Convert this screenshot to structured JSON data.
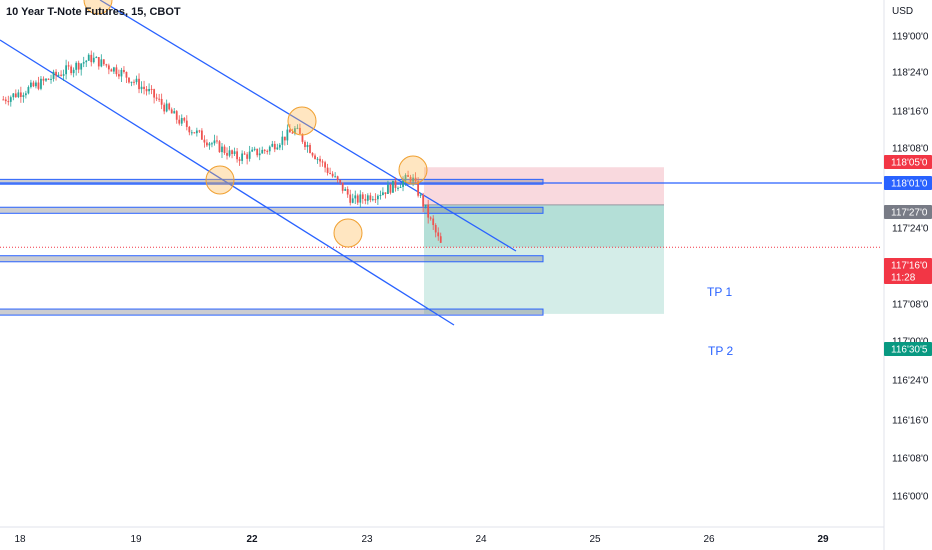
{
  "header": {
    "title": "10 Year T-Note Futures, 15, CBOT",
    "currency": "USD"
  },
  "chart_data": {
    "type": "line",
    "title": "10 Year T-Note Futures, 15, CBOT",
    "xlabel": "",
    "ylabel": "USD",
    "y_ticks": [
      "119'00'0",
      "118'24'0",
      "118'16'0",
      "118'08'0",
      "117'24'0",
      "117'08'0",
      "117'00'0",
      "116'24'0",
      "116'16'0",
      "116'08'0",
      "116'00'0"
    ],
    "y_tick_values": [
      119.0,
      118.75,
      118.5,
      118.25,
      117.75,
      117.25,
      117.0,
      116.75,
      116.5,
      116.25,
      116.0
    ],
    "x_ticks": [
      "18",
      "19",
      "22",
      "23",
      "24",
      "25",
      "26",
      "29"
    ],
    "ylim": [
      115.75,
      119.16
    ],
    "grid": false,
    "close_series": {
      "name": "Close",
      "x": [
        "18 00:00",
        "18 06:00",
        "18 12:00",
        "18 18:00",
        "19 00:00",
        "19 06:00",
        "19 12:00",
        "19 18:00",
        "22 00:00",
        "22 06:00",
        "22 12:00",
        "22 18:00",
        "23 00:00",
        "23 06:00",
        "23 12:00",
        "23 18:00"
      ],
      "values": [
        118.72,
        118.82,
        118.94,
        119.06,
        118.95,
        118.78,
        118.55,
        118.38,
        118.24,
        118.3,
        118.47,
        118.17,
        117.88,
        117.96,
        118.08,
        117.52
      ]
    },
    "price_tags": [
      {
        "label": "118'05'0",
        "value": 118.16,
        "color": "#f23645"
      },
      {
        "label": "118'01'0",
        "value": 118.03,
        "color": "#2962ff"
      },
      {
        "label": "117'27'0",
        "value": 117.85,
        "color": "#787b86"
      },
      {
        "label": "117'16'0",
        "value": 117.5,
        "color": "#f23645"
      },
      {
        "label": "11:28",
        "value": 117.46,
        "color": "#f23645"
      },
      {
        "label": "116'30'5",
        "value": 116.95,
        "color": "#089981"
      }
    ],
    "horizontal_line": {
      "value": 118.03,
      "color": "#2962ff"
    },
    "last_price_line": {
      "value": 117.5,
      "color": "#f23645"
    },
    "zones": [
      {
        "top": 118.06,
        "bottom": 118.02
      },
      {
        "top": 117.83,
        "bottom": 117.78
      },
      {
        "top": 117.43,
        "bottom": 117.38
      },
      {
        "top": 116.99,
        "bottom": 116.94
      }
    ],
    "channel": {
      "upper": [
        [
          116.0,
          118.5
        ],
        [
          117.72,
          117.62
        ]
      ],
      "lower": [
        [
          115.5,
          118.82
        ],
        [
          117.13,
          117.22
        ]
      ]
    },
    "position": {
      "entry": 117.85,
      "stop": 118.16,
      "target": 116.95,
      "colors": {
        "stop": "#f23645",
        "target": "#089981"
      }
    },
    "annotations": [
      {
        "text": "TP 1",
        "value": 117.33
      },
      {
        "text": "TP 2",
        "value": 116.93
      }
    ],
    "markers": [
      {
        "x": 18.6,
        "value": 119.16
      },
      {
        "x": 19.6,
        "value": 118.14
      },
      {
        "x": 21.3,
        "value": 118.38
      },
      {
        "x": 22.5,
        "value": 117.76
      },
      {
        "x": 23.2,
        "value": 118.12
      }
    ],
    "colors": {
      "up": "#26a69a",
      "down": "#ef5350"
    }
  }
}
